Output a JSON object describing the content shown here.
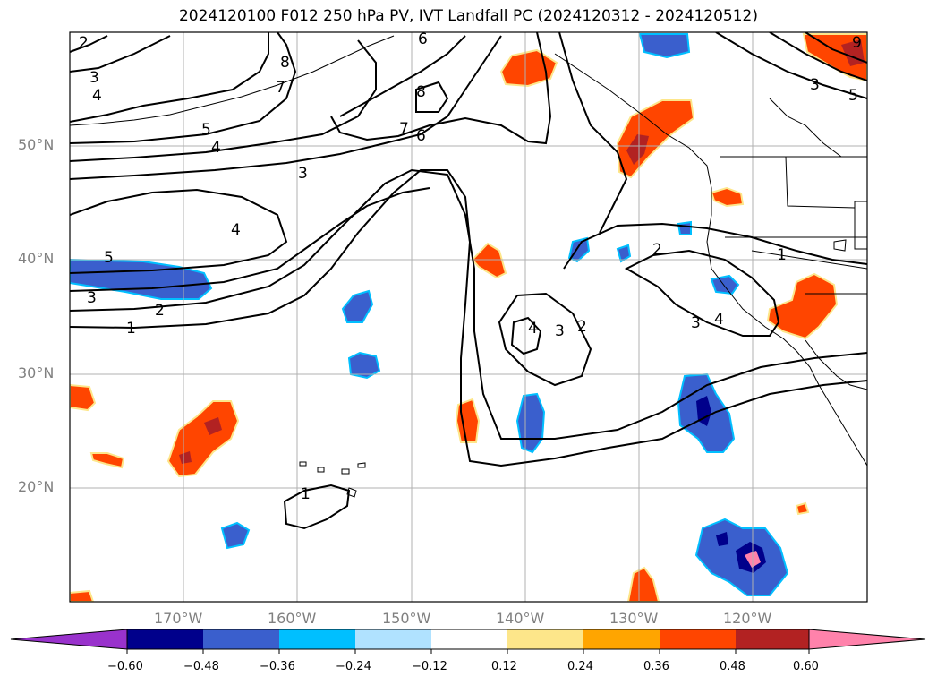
{
  "title": "2024120100 F012 250 hPa PV, IVT Landfall PC (2024120312 - 2024120512)",
  "lat_labels": [
    "50°N",
    "40°N",
    "30°N",
    "20°N"
  ],
  "lon_labels": [
    "170°W",
    "160°W",
    "150°W",
    "140°W",
    "130°W",
    "120°W"
  ],
  "colorbar": {
    "ticks": [
      "−0.60",
      "−0.48",
      "−0.36",
      "−0.24",
      "−0.12",
      "0.12",
      "0.24",
      "0.36",
      "0.48",
      "0.60"
    ],
    "colors": [
      "#9932cc",
      "#00008b",
      "#3a5fcd",
      "#00bfff",
      "#b0e2ff",
      "#ffffff",
      "#fde68a",
      "#ffa500",
      "#ff4500",
      "#b22222",
      "#ff82ab"
    ]
  },
  "pv_contour_labels": [
    "1",
    "1",
    "1",
    "2",
    "2",
    "2",
    "2",
    "3",
    "3",
    "3",
    "3",
    "3",
    "3",
    "4",
    "4",
    "4",
    "4",
    "4",
    "5",
    "5",
    "5",
    "6",
    "6",
    "7",
    "7",
    "8",
    "8",
    "9"
  ],
  "colors": {
    "frame": "#000000",
    "grid": "#b0b0b0",
    "coast": "#000000"
  }
}
